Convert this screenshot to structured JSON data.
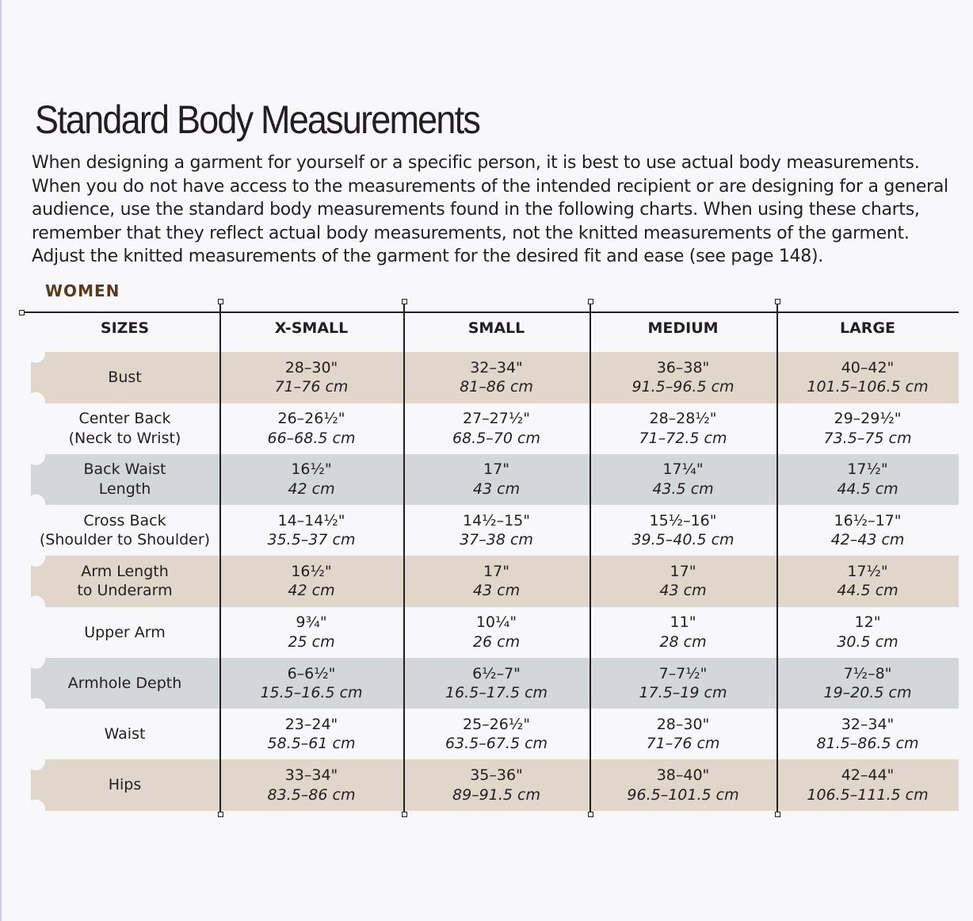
{
  "title": "Standard Body Measurements",
  "intro": "When designing a garment for yourself or a specific person, it is best to use actual body measurements. When you do not have access to the measurements of the intended recipient or are designing for a general audience, use the standard body measurements found in the following charts. When using these charts, remember that they reflect actual body measurements, not the knitted measurements of the garment. Adjust the knitted measurements of the garment for the desired fit and ease (see page 148).",
  "section": "WOMEN",
  "colors": {
    "tan": "#e0d6c9",
    "gray": "#d3d6da",
    "section": "#5a3b17"
  },
  "headers": [
    "SIZES",
    "X-SMALL",
    "SMALL",
    "MEDIUM",
    "LARGE"
  ],
  "rows": [
    {
      "label": [
        "Bust"
      ],
      "shade": "tan",
      "values": [
        [
          "28–30\"",
          "71–76 cm"
        ],
        [
          "32–34\"",
          "81–86 cm"
        ],
        [
          "36–38\"",
          "91.5–96.5 cm"
        ],
        [
          "40–42\"",
          "101.5–106.5 cm"
        ]
      ]
    },
    {
      "label": [
        "Center Back",
        "(Neck to Wrist)"
      ],
      "shade": "none",
      "values": [
        [
          "26–26½\"",
          "66–68.5 cm"
        ],
        [
          "27–27½\"",
          "68.5–70 cm"
        ],
        [
          "28–28½\"",
          "71–72.5 cm"
        ],
        [
          "29–29½\"",
          "73.5–75 cm"
        ]
      ]
    },
    {
      "label": [
        "Back Waist",
        "Length"
      ],
      "shade": "gray",
      "values": [
        [
          "16½\"",
          "42 cm"
        ],
        [
          "17\"",
          "43 cm"
        ],
        [
          "17¼\"",
          "43.5 cm"
        ],
        [
          "17½\"",
          "44.5 cm"
        ]
      ]
    },
    {
      "label": [
        "Cross Back",
        "(Shoulder to Shoulder)"
      ],
      "shade": "none",
      "values": [
        [
          "14–14½\"",
          "35.5–37 cm"
        ],
        [
          "14½–15\"",
          "37–38 cm"
        ],
        [
          "15½–16\"",
          "39.5–40.5 cm"
        ],
        [
          "16½–17\"",
          "42–43 cm"
        ]
      ]
    },
    {
      "label": [
        "Arm Length",
        "to Underarm"
      ],
      "shade": "tan",
      "values": [
        [
          "16½\"",
          "42 cm"
        ],
        [
          "17\"",
          "43 cm"
        ],
        [
          "17\"",
          "43 cm"
        ],
        [
          "17½\"",
          "44.5 cm"
        ]
      ]
    },
    {
      "label": [
        "Upper Arm"
      ],
      "shade": "none",
      "values": [
        [
          "9¾\"",
          "25 cm"
        ],
        [
          "10¼\"",
          "26 cm"
        ],
        [
          "11\"",
          "28 cm"
        ],
        [
          "12\"",
          "30.5 cm"
        ]
      ]
    },
    {
      "label": [
        "Armhole Depth"
      ],
      "shade": "gray",
      "values": [
        [
          "6–6½\"",
          "15.5–16.5 cm"
        ],
        [
          "6½–7\"",
          "16.5–17.5 cm"
        ],
        [
          "7–7½\"",
          "17.5–19 cm"
        ],
        [
          "7½–8\"",
          "19–20.5 cm"
        ]
      ]
    },
    {
      "label": [
        "Waist"
      ],
      "shade": "none",
      "values": [
        [
          "23–24\"",
          "58.5–61 cm"
        ],
        [
          "25–26½\"",
          "63.5–67.5 cm"
        ],
        [
          "28–30\"",
          "71–76 cm"
        ],
        [
          "32–34\"",
          "81.5–86.5 cm"
        ]
      ]
    },
    {
      "label": [
        "Hips"
      ],
      "shade": "tan",
      "values": [
        [
          "33–34\"",
          "83.5–86 cm"
        ],
        [
          "35–36\"",
          "89–91.5 cm"
        ],
        [
          "38–40\"",
          "96.5–101.5 cm"
        ],
        [
          "42–44\"",
          "106.5–111.5 cm"
        ]
      ]
    }
  ]
}
